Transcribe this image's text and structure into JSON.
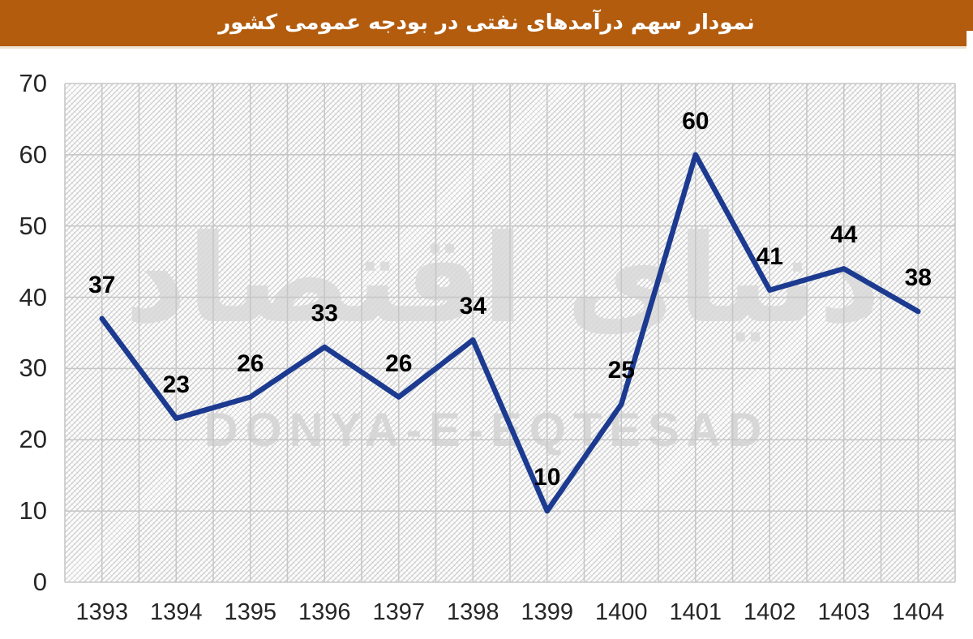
{
  "header": {
    "title": "نمودار سهم درآمدهای نفتی در بودجه عمومی کشور",
    "bg_color": "#b35c0e",
    "text_color": "#ffffff"
  },
  "watermark": {
    "persian": "دنیای اقتصاد",
    "latin": "DONYA-E-EQTESAD"
  },
  "chart_data": {
    "type": "line",
    "title": "نمودار سهم درآمدهای نفتی در بودجه عمومی کشور",
    "categories": [
      "1393",
      "1394",
      "1395",
      "1396",
      "1397",
      "1398",
      "1399",
      "1400",
      "1401",
      "1402",
      "1403",
      "1404"
    ],
    "values": [
      37,
      23,
      26,
      33,
      26,
      34,
      10,
      25,
      60,
      41,
      44,
      38
    ],
    "xlabel": "",
    "ylabel": "",
    "ylim": [
      0,
      70
    ],
    "ytick_step": 10,
    "yticks": [
      0,
      10,
      20,
      30,
      40,
      50,
      60,
      70
    ],
    "grid": true,
    "legend": "none",
    "line_color": "#1c3a90",
    "grid_color": "#c7c7c7",
    "data_labels": true,
    "plot_background": "diagonal-hatch-pattern"
  }
}
